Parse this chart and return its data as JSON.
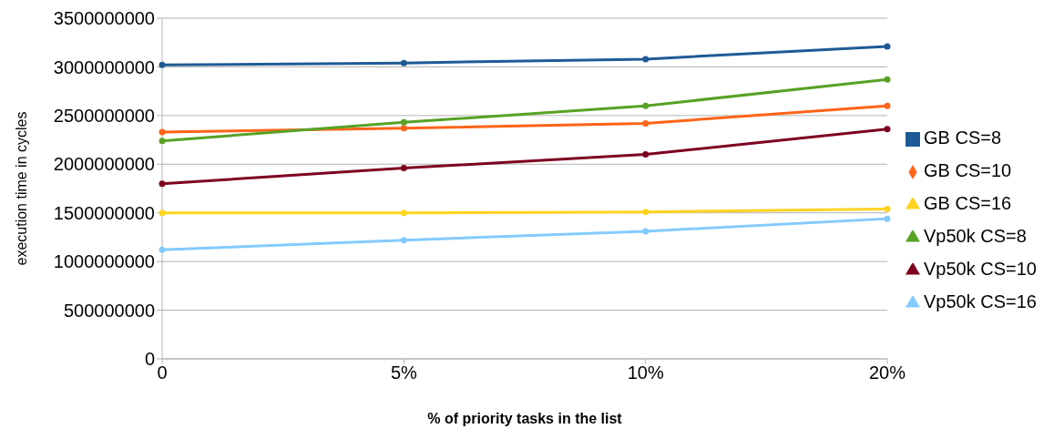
{
  "chart_data": {
    "type": "line",
    "xlabel": "% of priority tasks in the list",
    "ylabel": "execution time in cycles",
    "categories": [
      "0",
      "5%",
      "10%",
      "20%"
    ],
    "series": [
      {
        "name": "GB CS=8",
        "color": "#1f5a96",
        "values": [
          3020000000,
          3040000000,
          3080000000,
          3210000000
        ]
      },
      {
        "name": "GB CS=10",
        "color": "#ff6419",
        "values": [
          2330000000,
          2370000000,
          2420000000,
          2600000000
        ]
      },
      {
        "name": "GB CS=16",
        "color": "#ffd320",
        "values": [
          1500000000,
          1500000000,
          1510000000,
          1540000000
        ]
      },
      {
        "name": "Vp50k CS=8",
        "color": "#57a225",
        "values": [
          2240000000,
          2430000000,
          2600000000,
          2870000000
        ]
      },
      {
        "name": "Vp50k CS=10",
        "color": "#7e0021",
        "values": [
          1800000000,
          1960000000,
          2100000000,
          2360000000
        ]
      },
      {
        "name": "Vp50k CS=16",
        "color": "#83caff",
        "values": [
          1120000000,
          1220000000,
          1310000000,
          1440000000
        ]
      }
    ],
    "ylim": [
      0,
      3500000000
    ],
    "yticks": [
      0,
      500000000,
      1000000000,
      1500000000,
      2000000000,
      2500000000,
      3000000000,
      3500000000
    ],
    "grid": "y",
    "legend": "right",
    "marker": "circle",
    "line_style": "solid"
  }
}
